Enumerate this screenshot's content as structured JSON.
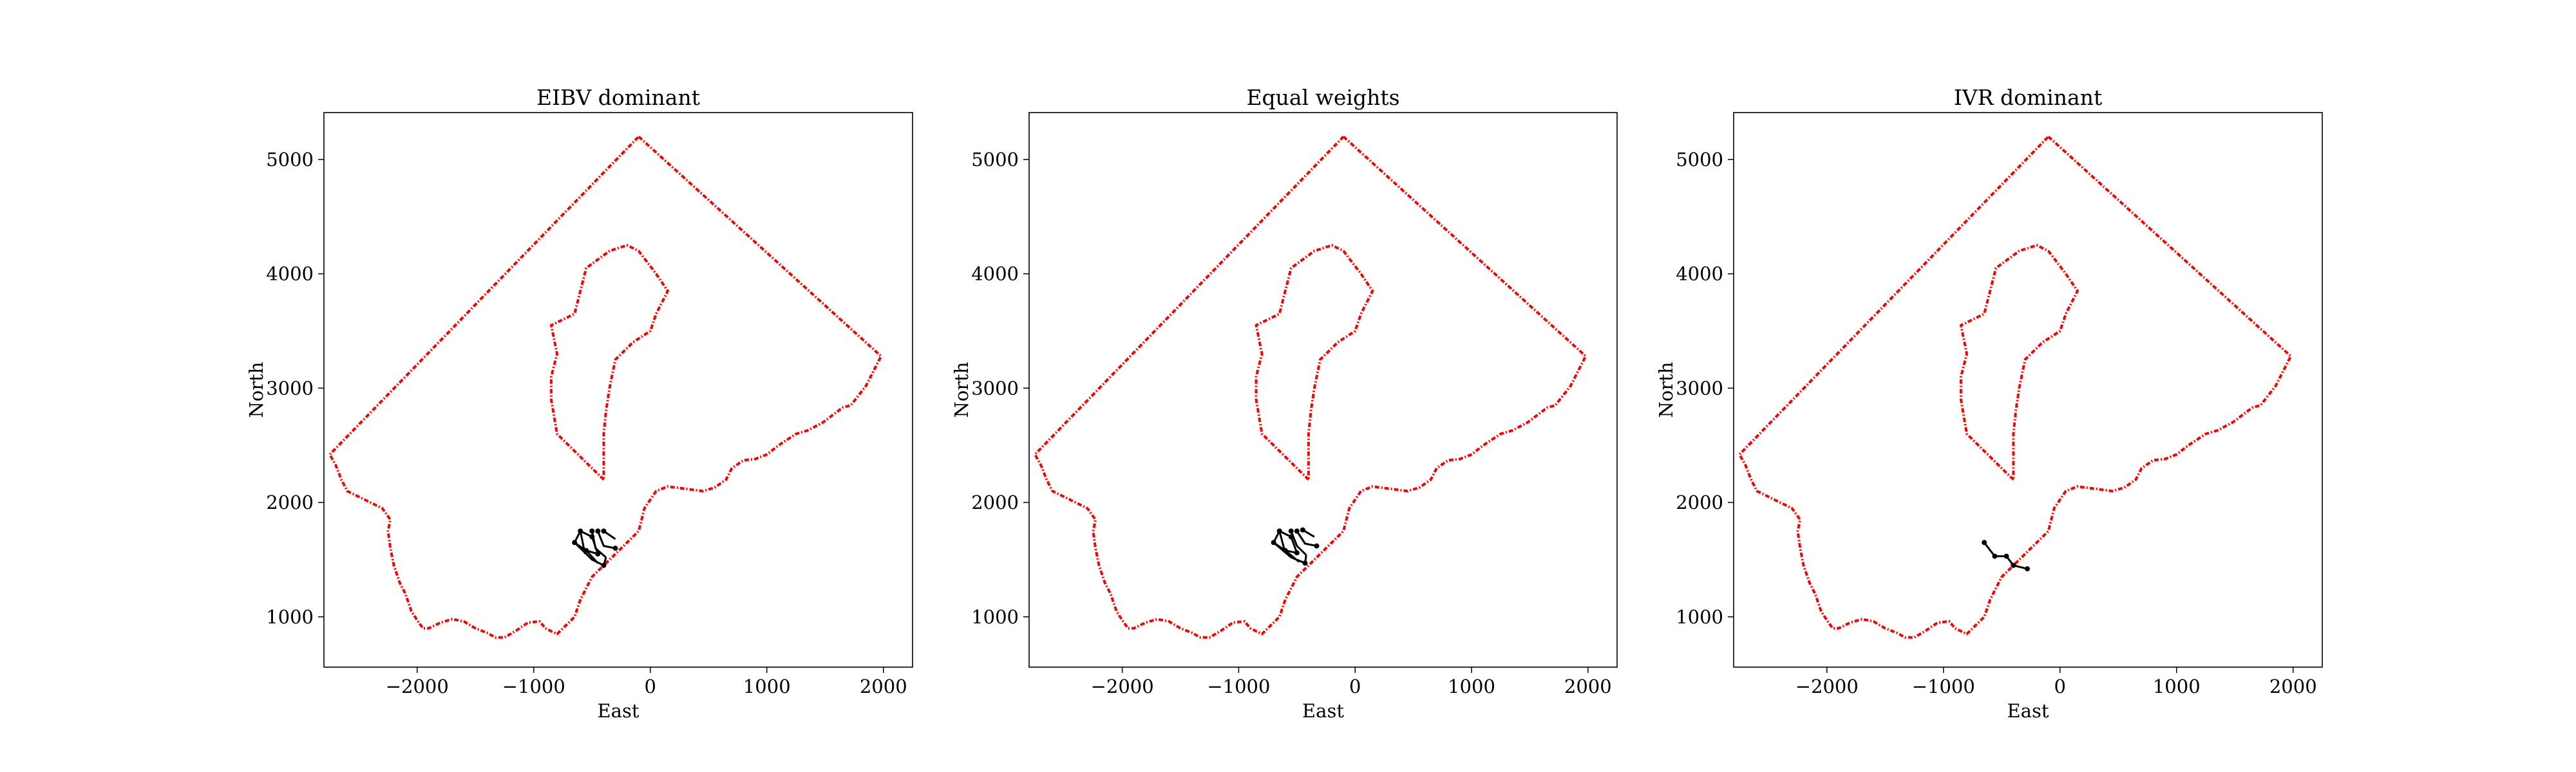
{
  "chart_data": [
    {
      "type": "line",
      "title": "EIBV dominant",
      "xlabel": "East",
      "ylabel": "North",
      "xlim": [
        -2800,
        2250
      ],
      "ylim": [
        560,
        5410
      ],
      "xticks": [
        -2000,
        -1000,
        0,
        1000,
        2000
      ],
      "yticks": [
        1000,
        2000,
        3000,
        4000,
        5000
      ],
      "grid": false,
      "boundary_color": "#ff0000",
      "path_color": "#000000",
      "path_segments": [
        [
          [
            -650,
            1650
          ],
          [
            -600,
            1750
          ],
          [
            -500,
            1700
          ],
          [
            -450,
            1550
          ],
          [
            -550,
            1580
          ],
          [
            -650,
            1650
          ]
        ],
        [
          [
            -600,
            1750
          ],
          [
            -560,
            1550
          ]
        ],
        [
          [
            -500,
            1750
          ],
          [
            -470,
            1600
          ],
          [
            -380,
            1520
          ]
        ],
        [
          [
            -450,
            1750
          ],
          [
            -400,
            1620
          ],
          [
            -300,
            1600
          ]
        ],
        [
          [
            -400,
            1750
          ],
          [
            -300,
            1680
          ]
        ],
        [
          [
            -650,
            1650
          ],
          [
            -500,
            1500
          ],
          [
            -400,
            1450
          ],
          [
            -380,
            1520
          ]
        ],
        [
          [
            -550,
            1580
          ],
          [
            -450,
            1470
          ]
        ]
      ],
      "path_points": [
        [
          -650,
          1650
        ],
        [
          -600,
          1750
        ],
        [
          -500,
          1700
        ],
        [
          -450,
          1550
        ],
        [
          -550,
          1580
        ],
        [
          -500,
          1750
        ],
        [
          -450,
          1750
        ],
        [
          -400,
          1750
        ],
        [
          -400,
          1450
        ],
        [
          -300,
          1600
        ]
      ]
    },
    {
      "type": "line",
      "title": "Equal weights",
      "xlabel": "East",
      "ylabel": "North",
      "xlim": [
        -2800,
        2250
      ],
      "ylim": [
        560,
        5410
      ],
      "xticks": [
        -2000,
        -1000,
        0,
        1000,
        2000
      ],
      "yticks": [
        1000,
        2000,
        3000,
        4000,
        5000
      ],
      "grid": false,
      "boundary_color": "#ff0000",
      "path_color": "#000000",
      "path_segments": [
        [
          [
            -700,
            1650
          ],
          [
            -650,
            1750
          ],
          [
            -550,
            1700
          ],
          [
            -500,
            1560
          ],
          [
            -600,
            1580
          ],
          [
            -700,
            1650
          ]
        ],
        [
          [
            -650,
            1750
          ],
          [
            -600,
            1560
          ]
        ],
        [
          [
            -550,
            1750
          ],
          [
            -500,
            1620
          ],
          [
            -420,
            1540
          ]
        ],
        [
          [
            -500,
            1750
          ],
          [
            -430,
            1640
          ],
          [
            -330,
            1620
          ]
        ],
        [
          [
            -450,
            1760
          ],
          [
            -350,
            1700
          ]
        ],
        [
          [
            -700,
            1650
          ],
          [
            -550,
            1520
          ],
          [
            -430,
            1470
          ],
          [
            -420,
            1540
          ]
        ],
        [
          [
            -600,
            1580
          ],
          [
            -480,
            1480
          ]
        ]
      ],
      "path_points": [
        [
          -700,
          1650
        ],
        [
          -650,
          1750
        ],
        [
          -550,
          1700
        ],
        [
          -500,
          1560
        ],
        [
          -600,
          1580
        ],
        [
          -550,
          1750
        ],
        [
          -500,
          1750
        ],
        [
          -450,
          1760
        ],
        [
          -430,
          1470
        ],
        [
          -330,
          1620
        ]
      ]
    },
    {
      "type": "line",
      "title": "IVR dominant",
      "xlabel": "East",
      "ylabel": "North",
      "xlim": [
        -2800,
        2250
      ],
      "ylim": [
        560,
        5410
      ],
      "xticks": [
        -2000,
        -1000,
        0,
        1000,
        2000
      ],
      "yticks": [
        1000,
        2000,
        3000,
        4000,
        5000
      ],
      "grid": false,
      "boundary_color": "#ff0000",
      "path_color": "#000000",
      "path_segments": [
        [
          [
            -650,
            1650
          ],
          [
            -560,
            1530
          ],
          [
            -460,
            1530
          ],
          [
            -400,
            1450
          ],
          [
            -280,
            1420
          ]
        ]
      ],
      "path_points": [
        [
          -650,
          1650
        ],
        [
          -560,
          1530
        ],
        [
          -460,
          1530
        ],
        [
          -400,
          1450
        ],
        [
          -280,
          1420
        ]
      ]
    }
  ],
  "boundary": {
    "outer": [
      [
        -100,
        5200
      ],
      [
        1980,
        3280
      ],
      [
        1850,
        3020
      ],
      [
        1720,
        2850
      ],
      [
        1650,
        2830
      ],
      [
        1480,
        2700
      ],
      [
        1350,
        2630
      ],
      [
        1250,
        2600
      ],
      [
        1100,
        2500
      ],
      [
        1000,
        2420
      ],
      [
        900,
        2380
      ],
      [
        800,
        2370
      ],
      [
        700,
        2300
      ],
      [
        650,
        2200
      ],
      [
        550,
        2130
      ],
      [
        450,
        2100
      ],
      [
        300,
        2120
      ],
      [
        150,
        2140
      ],
      [
        50,
        2100
      ],
      [
        -50,
        1950
      ],
      [
        -100,
        1750
      ],
      [
        -250,
        1600
      ],
      [
        -400,
        1450
      ],
      [
        -500,
        1350
      ],
      [
        -550,
        1250
      ],
      [
        -600,
        1150
      ],
      [
        -650,
        1000
      ],
      [
        -720,
        930
      ],
      [
        -800,
        850
      ],
      [
        -900,
        900
      ],
      [
        -950,
        960
      ],
      [
        -1050,
        950
      ],
      [
        -1150,
        880
      ],
      [
        -1250,
        820
      ],
      [
        -1330,
        820
      ],
      [
        -1400,
        860
      ],
      [
        -1500,
        900
      ],
      [
        -1600,
        960
      ],
      [
        -1700,
        980
      ],
      [
        -1800,
        950
      ],
      [
        -1900,
        900
      ],
      [
        -1950,
        900
      ],
      [
        -2000,
        970
      ],
      [
        -2050,
        1050
      ],
      [
        -2100,
        1200
      ],
      [
        -2150,
        1300
      ],
      [
        -2200,
        1450
      ],
      [
        -2230,
        1600
      ],
      [
        -2250,
        1750
      ],
      [
        -2230,
        1850
      ],
      [
        -2300,
        1950
      ],
      [
        -2400,
        2000
      ],
      [
        -2500,
        2050
      ],
      [
        -2600,
        2100
      ],
      [
        -2650,
        2200
      ],
      [
        -2700,
        2330
      ],
      [
        -2750,
        2420
      ],
      [
        -100,
        5200
      ]
    ],
    "island": [
      [
        -400,
        2200
      ],
      [
        -550,
        2350
      ],
      [
        -700,
        2500
      ],
      [
        -800,
        2600
      ],
      [
        -850,
        2900
      ],
      [
        -850,
        3100
      ],
      [
        -800,
        3300
      ],
      [
        -850,
        3550
      ],
      [
        -750,
        3600
      ],
      [
        -650,
        3650
      ],
      [
        -600,
        3850
      ],
      [
        -550,
        4050
      ],
      [
        -350,
        4200
      ],
      [
        -200,
        4250
      ],
      [
        -100,
        4200
      ],
      [
        50,
        4000
      ],
      [
        150,
        3850
      ],
      [
        50,
        3650
      ],
      [
        0,
        3500
      ],
      [
        -150,
        3400
      ],
      [
        -300,
        3250
      ],
      [
        -350,
        3000
      ],
      [
        -380,
        2800
      ],
      [
        -400,
        2600
      ],
      [
        -400,
        2200
      ]
    ]
  }
}
